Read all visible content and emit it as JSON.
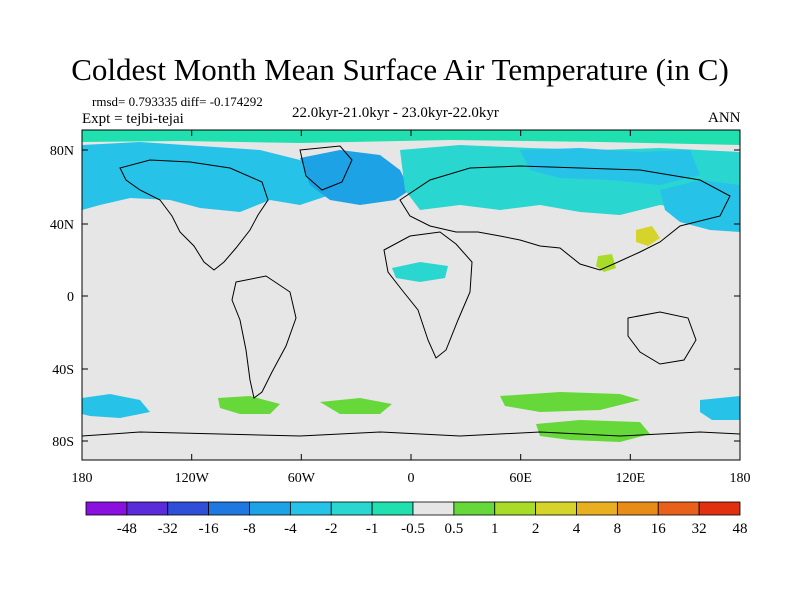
{
  "title": "Coldest Month Mean Surface Air Temperature (in C)",
  "stats": "rmsd= 0.793335 diff= -0.174292",
  "experiment": "Expt = tejbi-tejai",
  "period": "22.0kyr-21.0kyr - 23.0kyr-22.0kyr",
  "season": "ANN",
  "lat_ticks": [
    "80N",
    "40N",
    "0",
    "40S",
    "80S"
  ],
  "lon_ticks": [
    "180",
    "120W",
    "60W",
    "0",
    "60E",
    "120E",
    "180"
  ],
  "colorbar": {
    "colors": [
      "#8a10e0",
      "#5a2bd8",
      "#2f4fd8",
      "#1e78e0",
      "#1ea2e6",
      "#27c2e8",
      "#2ad6d0",
      "#20e0b0",
      "#e6e6e6",
      "#66d83a",
      "#a8dc28",
      "#d6d42a",
      "#e8b020",
      "#e88c18",
      "#e8601a",
      "#e03010"
    ],
    "labels": [
      "-48",
      "-32",
      "-16",
      "-8",
      "-4",
      "-2",
      "-1",
      "-0.5",
      "0.5",
      "1",
      "2",
      "4",
      "8",
      "16",
      "32",
      "48"
    ]
  }
}
